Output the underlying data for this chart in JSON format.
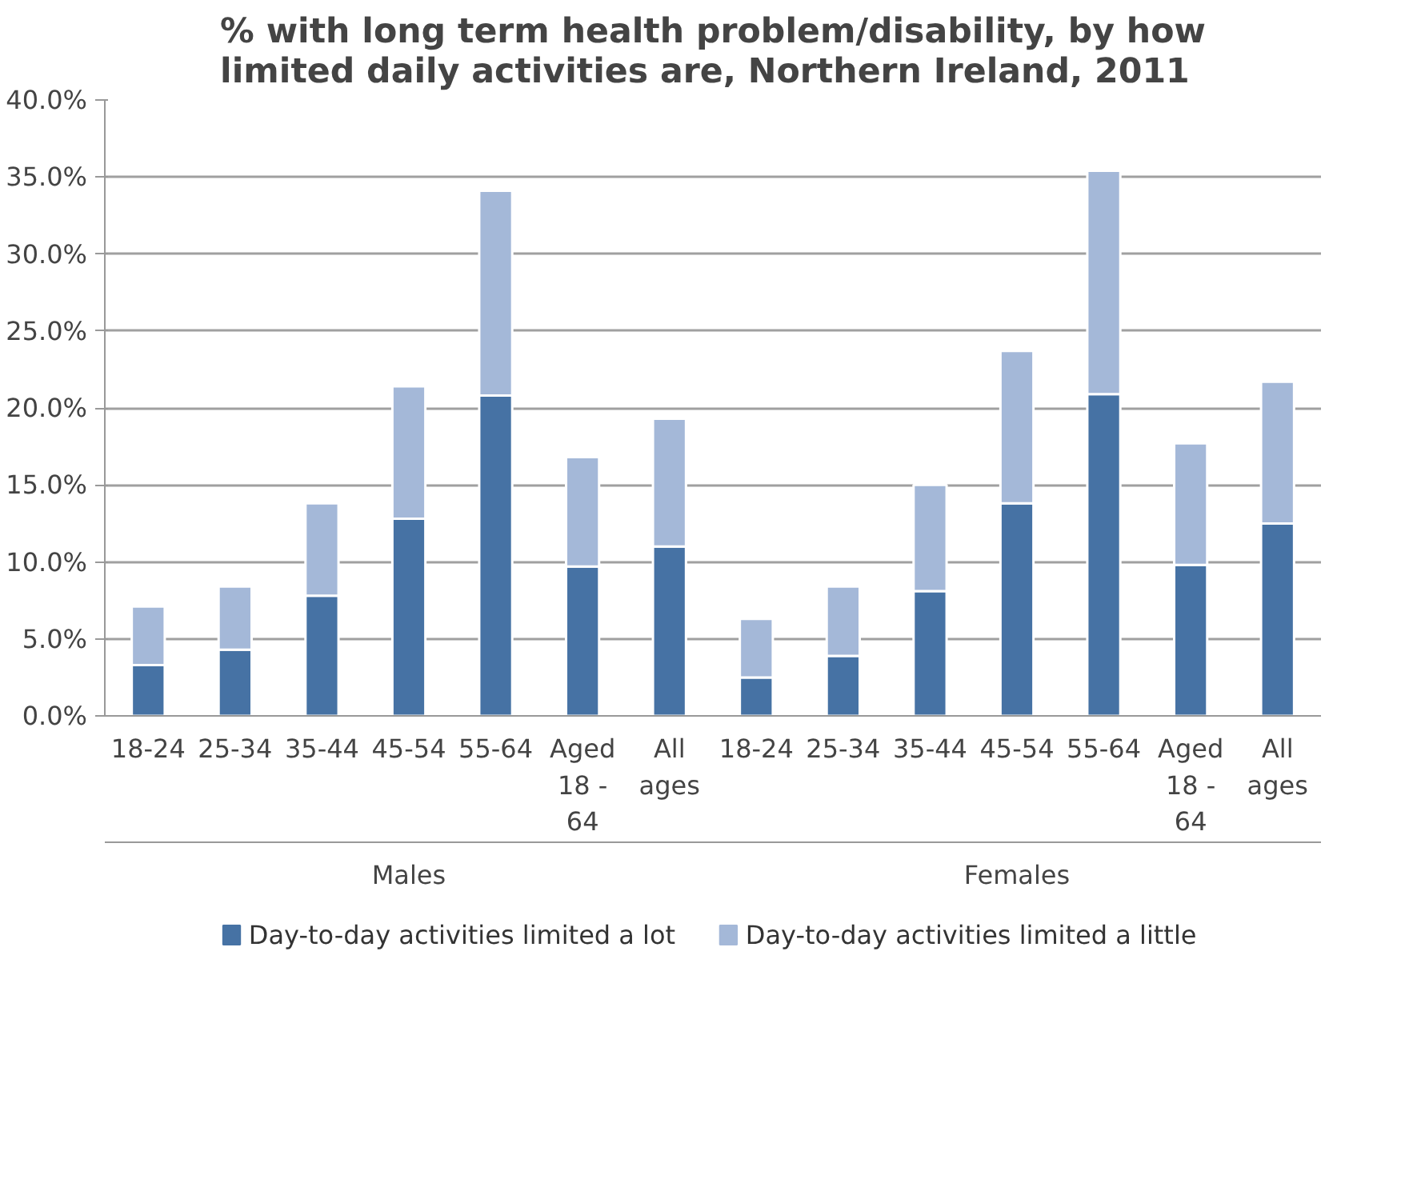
{
  "chart_data": {
    "type": "bar",
    "stacked": true,
    "title": "% with long term health problem/disability, by how limited daily activities are, Northern Ireland, 2011",
    "categories": [
      "18-24",
      "25-34",
      "35-44",
      "45-54",
      "55-64",
      "Aged 18 - 64",
      "All ages",
      "18-24",
      "25-34",
      "35-44",
      "45-54",
      "55-64",
      "Aged 18 - 64",
      "All ages"
    ],
    "annotations": [
      "Males",
      "Females"
    ],
    "series": [
      {
        "name": "Day-to-day activities limited a lot",
        "color": "#4672a4",
        "values": [
          3.3,
          4.3,
          7.8,
          12.8,
          20.8,
          9.7,
          11.0,
          2.5,
          3.9,
          8.1,
          13.8,
          20.9,
          9.8,
          12.5
        ]
      },
      {
        "name": "Day-to-day activities limited a little",
        "color": "#a4b8d8",
        "values": [
          3.8,
          4.1,
          6.0,
          8.6,
          13.3,
          7.1,
          8.3,
          3.8,
          4.5,
          6.9,
          9.9,
          14.5,
          7.9,
          9.2
        ]
      }
    ],
    "ylim": [
      0,
      40
    ],
    "yticks": [
      {
        "value": 0,
        "label": "0.0%"
      },
      {
        "value": 5,
        "label": "5.0%"
      },
      {
        "value": 10,
        "label": "10.0%"
      },
      {
        "value": 15,
        "label": "15.0%"
      },
      {
        "value": 20,
        "label": "20.0%"
      },
      {
        "value": 25,
        "label": "25.0%"
      },
      {
        "value": 30,
        "label": "30.0%"
      },
      {
        "value": 35,
        "label": "35.0%"
      },
      {
        "value": 40,
        "label": "40.0%"
      }
    ],
    "grid": "y",
    "legend": "bottom"
  }
}
